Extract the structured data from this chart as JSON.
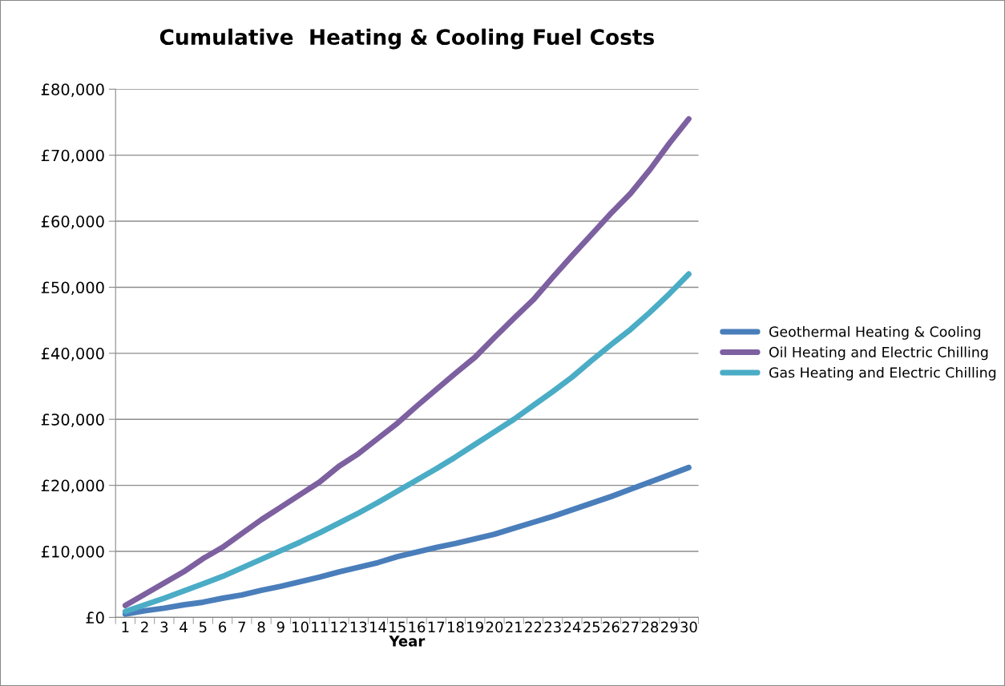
{
  "chart_data": {
    "type": "line",
    "title": "Cumulative  Heating & Cooling Fuel Costs",
    "xlabel": "Year",
    "categories": [
      "1",
      "2",
      "3",
      "4",
      "5",
      "6",
      "7",
      "8",
      "9",
      "10",
      "11",
      "12",
      "13",
      "14",
      "15",
      "16",
      "17",
      "18",
      "19",
      "20",
      "21",
      "22",
      "23",
      "24",
      "25",
      "26",
      "27",
      "28",
      "29",
      "30"
    ],
    "series": [
      {
        "name": "Geothermal Heating & Cooling",
        "color": "#4a7ebb",
        "values": [
          500,
          1000,
          1400,
          1900,
          2300,
          2900,
          3400,
          4100,
          4700,
          5400,
          6100,
          6900,
          7600,
          8300,
          9200,
          9900,
          10600,
          11200,
          11900,
          12600,
          13500,
          14400,
          15300,
          16300,
          17300,
          18300,
          19400,
          20500,
          21600,
          22700
        ]
      },
      {
        "name": "Oil Heating and Electric Chilling",
        "color": "#7d60a0",
        "values": [
          1800,
          3500,
          5200,
          6900,
          8900,
          10600,
          12700,
          14800,
          16700,
          18600,
          20500,
          22900,
          24800,
          27100,
          29400,
          32000,
          34500,
          37000,
          39400,
          42400,
          45300,
          48100,
          51500,
          54800,
          58000,
          61200,
          64200,
          67800,
          71800,
          75500
        ]
      },
      {
        "name": "Gas Heating and Electric Chilling",
        "color": "#4bacc6",
        "values": [
          900,
          1900,
          2900,
          4000,
          5100,
          6200,
          7500,
          8800,
          10100,
          11400,
          12800,
          14300,
          15800,
          17400,
          19100,
          20800,
          22500,
          24300,
          26200,
          28100,
          30000,
          32100,
          34200,
          36400,
          38900,
          41300,
          43600,
          46200,
          49000,
          52000
        ]
      }
    ],
    "ylim": [
      0,
      80000
    ],
    "yticks": [
      {
        "value": 0,
        "label": "£0"
      },
      {
        "value": 10000,
        "label": "£10,000"
      },
      {
        "value": 20000,
        "label": "£20,000"
      },
      {
        "value": 30000,
        "label": "£30,000"
      },
      {
        "value": 40000,
        "label": "£40,000"
      },
      {
        "value": 50000,
        "label": "£50,000"
      },
      {
        "value": 60000,
        "label": "£60,000"
      },
      {
        "value": 70000,
        "label": "£70,000"
      },
      {
        "value": 80000,
        "label": "£80,000"
      }
    ],
    "grid": "y",
    "legend": "right",
    "marker": "none",
    "line_style": "solid"
  }
}
